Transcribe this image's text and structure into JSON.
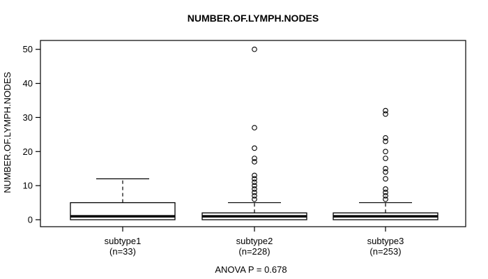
{
  "chart_data": {
    "type": "boxplot",
    "title": "NUMBER.OF.LYMPH.NODES",
    "ylabel": "NUMBER.OF.LYMPH.NODES",
    "xlabel": "",
    "footer_text": "ANOVA P = 0.678",
    "anova_p": 0.678,
    "ylim": [
      0,
      50
    ],
    "yticks": [
      0,
      10,
      20,
      30,
      40,
      50
    ],
    "grid": false,
    "legend": "none",
    "frame_color": "#000000",
    "box_fill_color": "#ffffff",
    "line_color": "#000000",
    "groups": [
      {
        "label": "subtype1",
        "sublabel": "(n=33)",
        "n": 33,
        "q1": 0,
        "median": 1,
        "q3": 5,
        "whisker_low": 0,
        "whisker_high": 12,
        "outliers": []
      },
      {
        "label": "subtype2",
        "sublabel": "(n=228)",
        "n": 228,
        "q1": 0,
        "median": 1,
        "q3": 2,
        "whisker_low": 0,
        "whisker_high": 5,
        "outliers": [
          50,
          27,
          21,
          18,
          17,
          13,
          12,
          11,
          10,
          9,
          8,
          7,
          6
        ]
      },
      {
        "label": "subtype3",
        "sublabel": "(n=253)",
        "n": 253,
        "q1": 0,
        "median": 1,
        "q3": 2,
        "whisker_low": 0,
        "whisker_high": 5,
        "outliers": [
          32,
          31,
          24,
          23,
          20,
          18,
          15,
          14,
          12,
          9,
          8,
          7,
          6
        ]
      }
    ]
  }
}
